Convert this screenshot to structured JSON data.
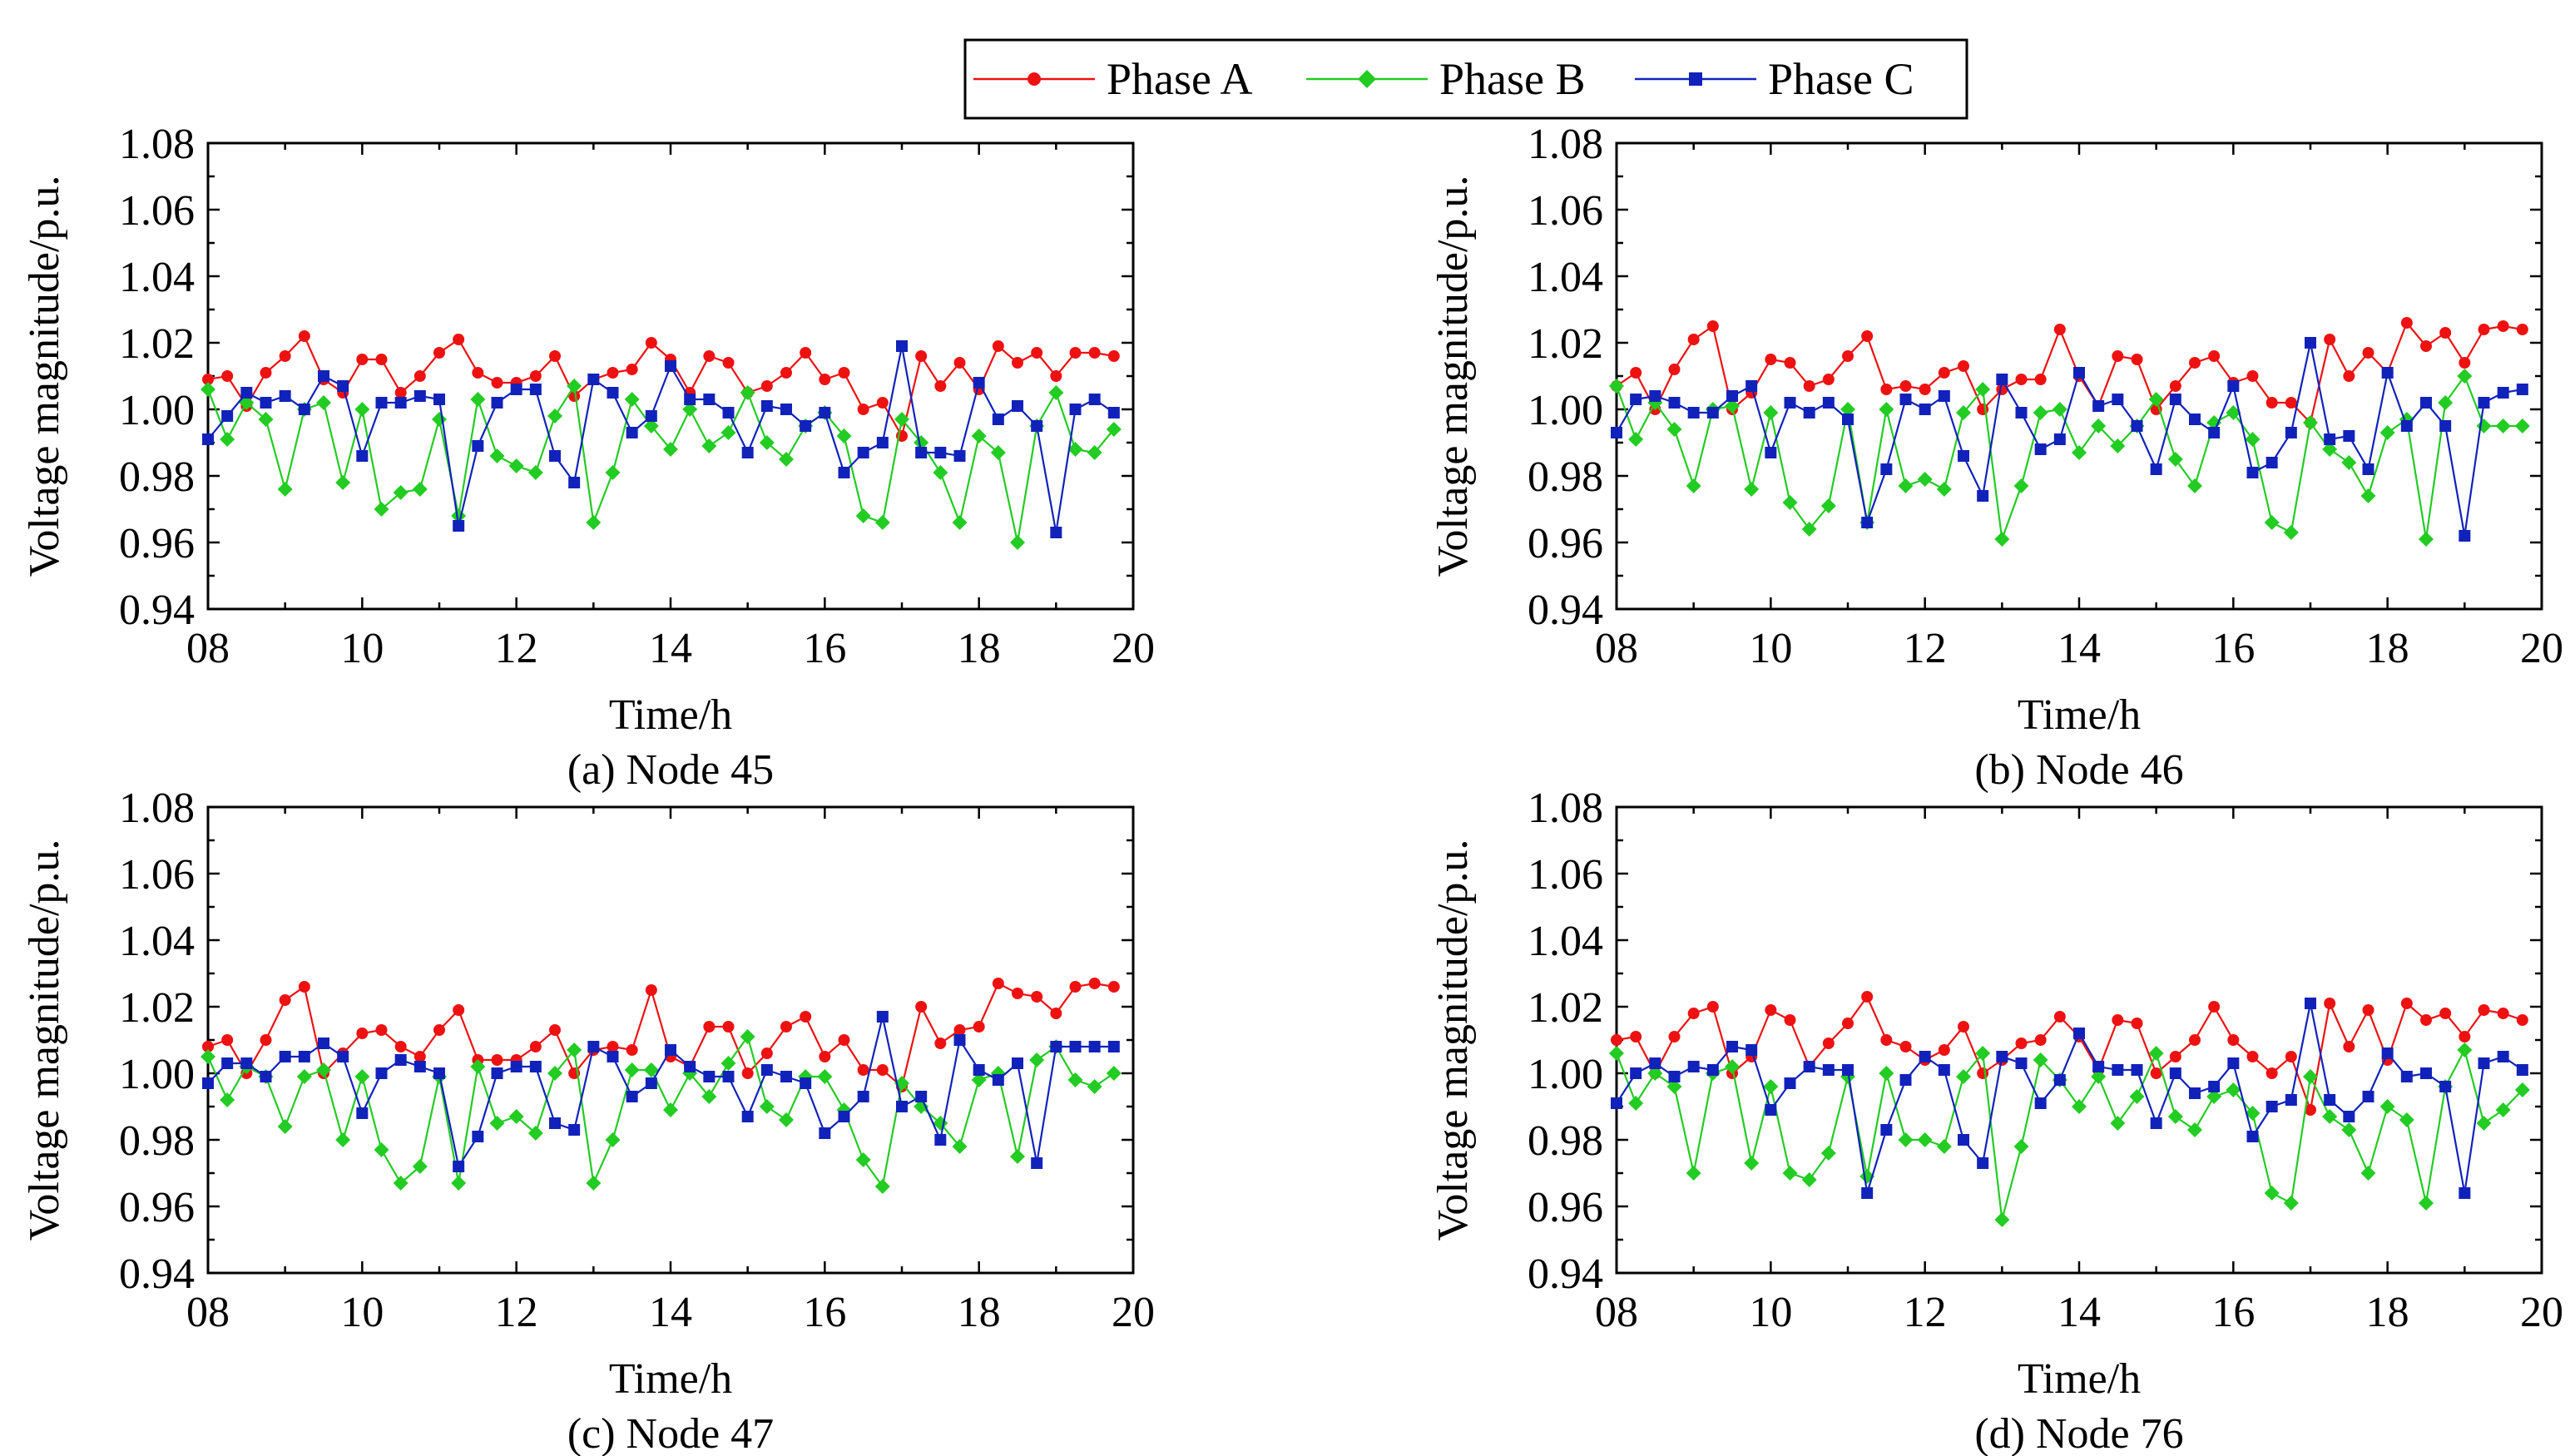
{
  "colors": {
    "phase_a": "#ee1111",
    "phase_b": "#22cc22",
    "phase_c": "#1122bb"
  },
  "legend": {
    "items": [
      {
        "label": "Phase A",
        "color": "#ee1111",
        "marker": "circle"
      },
      {
        "label": "Phase B",
        "color": "#22cc22",
        "marker": "diamond"
      },
      {
        "label": "Phase C",
        "color": "#1122bb",
        "marker": "square"
      }
    ]
  },
  "chart_data": [
    {
      "type": "line",
      "caption": "(a) Node 45",
      "xlabel": "Time/h",
      "ylabel": "Voltage magnitude/p.u.",
      "xlim": [
        8,
        20
      ],
      "ylim": [
        0.94,
        1.08
      ],
      "xticks": [
        "08",
        "10",
        "12",
        "14",
        "16",
        "18",
        "20"
      ],
      "yticks": [
        "0.94",
        "0.96",
        "0.98",
        "1.00",
        "1.02",
        "1.04",
        "1.06",
        "1.08"
      ],
      "x_start": 8,
      "x_step": 0.25,
      "series": [
        {
          "name": "Phase A",
          "values": [
            1.009,
            1.01,
            1.001,
            1.011,
            1.016,
            1.022,
            1.009,
            1.005,
            1.015,
            1.015,
            1.005,
            1.01,
            1.017,
            1.021,
            1.011,
            1.008,
            1.008,
            1.01,
            1.016,
            1.004,
            1.009,
            1.011,
            1.012,
            1.02,
            1.015,
            1.005,
            1.016,
            1.014,
            1.005,
            1.007,
            1.011,
            1.017,
            1.009,
            1.011,
            1.0,
            1.002,
            0.992,
            1.016,
            1.007,
            1.014,
            1.006,
            1.019,
            1.014,
            1.017,
            1.01,
            1.017,
            1.017,
            1.016
          ]
        },
        {
          "name": "Phase B",
          "values": [
            1.006,
            0.991,
            1.002,
            0.997,
            0.976,
            1.0,
            1.002,
            0.978,
            1.0,
            0.97,
            0.975,
            0.976,
            0.997,
            0.968,
            1.003,
            0.986,
            0.983,
            0.981,
            0.998,
            1.007,
            0.966,
            0.981,
            1.003,
            0.995,
            0.988,
            1.0,
            0.989,
            0.993,
            1.005,
            0.99,
            0.985,
            0.995,
            0.999,
            0.992,
            0.968,
            0.966,
            0.997,
            0.99,
            0.981,
            0.966,
            0.992,
            0.987,
            0.96,
            0.995,
            1.005,
            0.988,
            0.987,
            0.994
          ]
        },
        {
          "name": "Phase C",
          "values": [
            0.991,
            0.998,
            1.005,
            1.002,
            1.004,
            1.0,
            1.01,
            1.007,
            0.986,
            1.002,
            1.002,
            1.004,
            1.003,
            0.965,
            0.989,
            1.002,
            1.006,
            1.006,
            0.986,
            0.978,
            1.009,
            1.005,
            0.993,
            0.998,
            1.013,
            1.003,
            1.003,
            0.999,
            0.987,
            1.001,
            1.0,
            0.995,
            0.999,
            0.981,
            0.987,
            0.99,
            1.019,
            0.987,
            0.987,
            0.986,
            1.008,
            0.997,
            1.001,
            0.995,
            0.963,
            1.0,
            1.003,
            0.999
          ]
        }
      ]
    },
    {
      "type": "line",
      "caption": "(b) Node 46",
      "xlabel": "Time/h",
      "ylabel": "Voltage magnitude/p.u.",
      "xlim": [
        8,
        20
      ],
      "ylim": [
        0.94,
        1.08
      ],
      "xticks": [
        "08",
        "10",
        "12",
        "14",
        "16",
        "18",
        "20"
      ],
      "yticks": [
        "0.94",
        "0.96",
        "0.98",
        "1.00",
        "1.02",
        "1.04",
        "1.06",
        "1.08"
      ],
      "x_start": 8,
      "x_step": 0.25,
      "series": [
        {
          "name": "Phase A",
          "values": [
            1.007,
            1.011,
            1.0,
            1.012,
            1.021,
            1.025,
            1.0,
            1.005,
            1.015,
            1.014,
            1.007,
            1.009,
            1.016,
            1.022,
            1.006,
            1.007,
            1.006,
            1.011,
            1.013,
            1.0,
            1.006,
            1.009,
            1.009,
            1.024,
            1.01,
            1.001,
            1.016,
            1.015,
            1.0,
            1.007,
            1.014,
            1.016,
            1.008,
            1.01,
            1.002,
            1.002,
            0.996,
            1.021,
            1.01,
            1.017,
            1.011,
            1.026,
            1.019,
            1.023,
            1.014,
            1.024,
            1.025,
            1.024
          ]
        },
        {
          "name": "Phase B",
          "values": [
            1.007,
            0.991,
            1.002,
            0.994,
            0.977,
            1.0,
            1.001,
            0.976,
            0.999,
            0.972,
            0.964,
            0.971,
            1.0,
            0.966,
            1.0,
            0.977,
            0.979,
            0.976,
            0.999,
            1.006,
            0.961,
            0.977,
            0.999,
            1.0,
            0.987,
            0.995,
            0.989,
            0.995,
            1.003,
            0.985,
            0.977,
            0.996,
            0.999,
            0.991,
            0.966,
            0.963,
            0.996,
            0.988,
            0.984,
            0.974,
            0.993,
            0.997,
            0.961,
            1.002,
            1.01,
            0.995,
            0.995,
            0.995
          ]
        },
        {
          "name": "Phase C",
          "values": [
            0.993,
            1.003,
            1.004,
            1.002,
            0.999,
            0.999,
            1.004,
            1.007,
            0.987,
            1.002,
            0.999,
            1.002,
            0.997,
            0.966,
            0.982,
            1.003,
            1.0,
            1.004,
            0.986,
            0.974,
            1.009,
            0.999,
            0.988,
            0.991,
            1.011,
            1.001,
            1.003,
            0.995,
            0.982,
            1.003,
            0.997,
            0.993,
            1.007,
            0.981,
            0.984,
            0.993,
            1.02,
            0.991,
            0.992,
            0.982,
            1.011,
            0.995,
            1.002,
            0.995,
            0.962,
            1.002,
            1.005,
            1.006
          ]
        }
      ]
    },
    {
      "type": "line",
      "caption": "(c) Node 47",
      "xlabel": "Time/h",
      "ylabel": "Voltage magnitude/p.u.",
      "xlim": [
        8,
        20
      ],
      "ylim": [
        0.94,
        1.08
      ],
      "xticks": [
        "08",
        "10",
        "12",
        "14",
        "16",
        "18",
        "20"
      ],
      "yticks": [
        "0.94",
        "0.96",
        "0.98",
        "1.00",
        "1.02",
        "1.04",
        "1.06",
        "1.08"
      ],
      "x_start": 8,
      "x_step": 0.25,
      "series": [
        {
          "name": "Phase A",
          "values": [
            1.008,
            1.01,
            1.0,
            1.01,
            1.022,
            1.026,
            1.0,
            1.006,
            1.012,
            1.013,
            1.008,
            1.005,
            1.013,
            1.019,
            1.004,
            1.004,
            1.004,
            1.008,
            1.013,
            1.0,
            1.007,
            1.008,
            1.007,
            1.025,
            1.005,
            1.002,
            1.014,
            1.014,
            1.0,
            1.006,
            1.014,
            1.017,
            1.005,
            1.01,
            1.001,
            1.001,
            0.996,
            1.02,
            1.009,
            1.013,
            1.014,
            1.027,
            1.024,
            1.023,
            1.018,
            1.026,
            1.027,
            1.026
          ]
        },
        {
          "name": "Phase B",
          "values": [
            1.005,
            0.992,
            1.002,
            0.999,
            0.984,
            0.999,
            1.001,
            0.98,
            0.999,
            0.977,
            0.967,
            0.972,
            0.999,
            0.967,
            1.002,
            0.985,
            0.987,
            0.982,
            1.0,
            1.007,
            0.967,
            0.98,
            1.001,
            1.001,
            0.989,
            1.0,
            0.993,
            1.003,
            1.011,
            0.99,
            0.986,
            0.999,
            0.999,
            0.989,
            0.974,
            0.966,
            0.997,
            0.99,
            0.985,
            0.978,
            0.998,
            1.0,
            0.975,
            1.004,
            1.008,
            0.998,
            0.996,
            1.0
          ]
        },
        {
          "name": "Phase C",
          "values": [
            0.997,
            1.003,
            1.003,
            0.999,
            1.005,
            1.005,
            1.009,
            1.005,
            0.988,
            1.0,
            1.004,
            1.002,
            1.0,
            0.972,
            0.981,
            1.0,
            1.002,
            1.002,
            0.985,
            0.983,
            1.008,
            1.005,
            0.993,
            0.997,
            1.007,
            1.002,
            0.999,
            0.999,
            0.987,
            1.001,
            0.999,
            0.997,
            0.982,
            0.987,
            0.993,
            1.017,
            0.99,
            0.993,
            0.98,
            1.01,
            1.001,
            0.998,
            1.003,
            0.973,
            1.008,
            1.008,
            1.008,
            1.008
          ]
        }
      ]
    },
    {
      "type": "line",
      "caption": "(d) Node 76",
      "xlabel": "Time/h",
      "ylabel": "Voltage magnitude/p.u.",
      "xlim": [
        8,
        20
      ],
      "ylim": [
        0.94,
        1.08
      ],
      "xticks": [
        "08",
        "10",
        "12",
        "14",
        "16",
        "18",
        "20"
      ],
      "yticks": [
        "0.94",
        "0.96",
        "0.98",
        "1.00",
        "1.02",
        "1.04",
        "1.06",
        "1.08"
      ],
      "x_start": 8,
      "x_step": 0.25,
      "series": [
        {
          "name": "Phase A",
          "values": [
            1.01,
            1.011,
            1.0,
            1.011,
            1.018,
            1.02,
            1.0,
            1.005,
            1.019,
            1.016,
            1.002,
            1.009,
            1.015,
            1.023,
            1.01,
            1.008,
            1.004,
            1.007,
            1.014,
            1.0,
            1.004,
            1.009,
            1.01,
            1.017,
            1.011,
            1.001,
            1.016,
            1.015,
            1.0,
            1.005,
            1.01,
            1.02,
            1.01,
            1.005,
            1.0,
            1.005,
            0.989,
            1.021,
            1.008,
            1.019,
            1.004,
            1.021,
            1.016,
            1.018,
            1.011,
            1.019,
            1.018,
            1.016
          ]
        },
        {
          "name": "Phase B",
          "values": [
            1.006,
            0.991,
            1.0,
            0.996,
            0.97,
            1.0,
            1.002,
            0.973,
            0.996,
            0.97,
            0.968,
            0.976,
            0.999,
            0.969,
            1.0,
            0.98,
            0.98,
            0.978,
            0.999,
            1.006,
            0.956,
            0.978,
            1.004,
            0.998,
            0.99,
            0.999,
            0.985,
            0.993,
            1.006,
            0.987,
            0.983,
            0.993,
            0.995,
            0.988,
            0.964,
            0.961,
            0.999,
            0.987,
            0.983,
            0.97,
            0.99,
            0.986,
            0.961,
            0.996,
            1.007,
            0.985,
            0.989,
            0.995
          ]
        },
        {
          "name": "Phase C",
          "values": [
            0.991,
            1.0,
            1.003,
            0.999,
            1.002,
            1.001,
            1.008,
            1.007,
            0.989,
            0.997,
            1.002,
            1.001,
            1.001,
            0.964,
            0.983,
            0.998,
            1.005,
            1.001,
            0.98,
            0.973,
            1.005,
            1.003,
            0.991,
            0.998,
            1.012,
            1.002,
            1.001,
            1.001,
            0.985,
            1.0,
            0.994,
            0.996,
            1.003,
            0.981,
            0.99,
            0.992,
            1.021,
            0.992,
            0.987,
            0.993,
            1.006,
            0.999,
            1.0,
            0.996,
            0.964,
            1.003,
            1.005,
            1.001
          ]
        }
      ]
    }
  ]
}
